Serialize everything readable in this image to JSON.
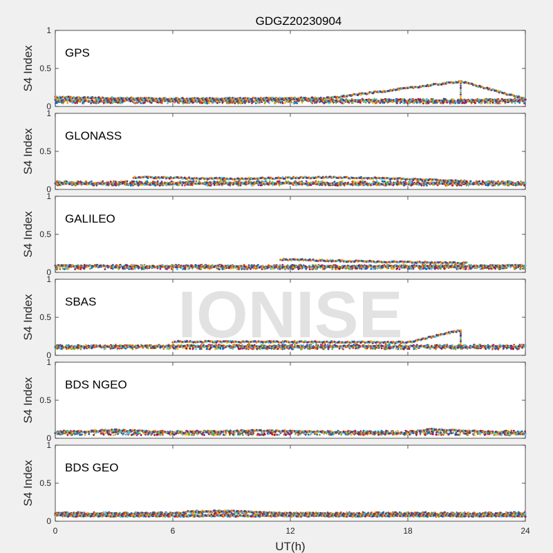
{
  "figure": {
    "title": "GDGZ20230904",
    "watermark": "IONISE",
    "background": "#f0f0f0"
  },
  "chart_data": [
    {
      "type": "scatter",
      "panel_label": "GPS",
      "ylabel": "S4 Index",
      "xlabel": "",
      "xlim": [
        0,
        24
      ],
      "ylim": [
        0,
        1
      ],
      "yticks": [
        0,
        0.5,
        1
      ],
      "ytick_labels": [
        "0",
        "0.5",
        "1"
      ],
      "base_level": 0.07,
      "series": [
        {
          "values": [
            [
              0,
              0.08
            ],
            [
              2,
              0.07
            ],
            [
              4,
              0.08
            ],
            [
              6,
              0.07
            ],
            [
              8,
              0.08
            ],
            [
              10,
              0.07
            ],
            [
              12,
              0.09
            ],
            [
              14,
              0.07
            ],
            [
              16,
              0.08
            ],
            [
              18,
              0.07
            ],
            [
              20,
              0.07
            ],
            [
              22,
              0.08
            ],
            [
              24,
              0.08
            ]
          ]
        },
        {
          "values": [
            [
              0,
              0.12
            ],
            [
              6,
              0.1
            ],
            [
              14,
              0.11
            ],
            [
              20.7,
              0.33
            ],
            [
              24,
              0.1
            ]
          ]
        }
      ]
    },
    {
      "type": "scatter",
      "panel_label": "GLONASS",
      "ylabel": "S4 Index",
      "xlabel": "",
      "xlim": [
        0,
        24
      ],
      "ylim": [
        0,
        1
      ],
      "yticks": [
        0,
        0.5,
        1
      ],
      "ytick_labels": [
        "0",
        "0.5",
        "1"
      ],
      "base_level": 0.08,
      "series": [
        {
          "values": [
            [
              0,
              0.08
            ],
            [
              4,
              0.07
            ],
            [
              8,
              0.08
            ],
            [
              12,
              0.08
            ],
            [
              16,
              0.07
            ],
            [
              20,
              0.08
            ],
            [
              24,
              0.08
            ]
          ]
        },
        {
          "values": [
            [
              4,
              0.16
            ],
            [
              6.5,
              0.15
            ],
            [
              9,
              0.14
            ],
            [
              14,
              0.16
            ],
            [
              16,
              0.15
            ],
            [
              21,
              0.11
            ]
          ]
        }
      ]
    },
    {
      "type": "scatter",
      "panel_label": "GALILEO",
      "ylabel": "S4 Index",
      "xlabel": "",
      "xlim": [
        0,
        24
      ],
      "ylim": [
        0,
        1
      ],
      "yticks": [
        0,
        0.5,
        1
      ],
      "ytick_labels": [
        "0",
        "0.5",
        "1"
      ],
      "base_level": 0.07,
      "series": [
        {
          "values": [
            [
              0,
              0.09
            ],
            [
              4,
              0.07
            ],
            [
              8,
              0.08
            ],
            [
              12,
              0.07
            ],
            [
              16,
              0.08
            ],
            [
              20,
              0.08
            ],
            [
              24,
              0.09
            ]
          ]
        },
        {
          "values": [
            [
              11.5,
              0.17
            ],
            [
              16.5,
              0.14
            ],
            [
              21,
              0.12
            ]
          ]
        }
      ]
    },
    {
      "type": "scatter",
      "panel_label": "SBAS",
      "ylabel": "S4 Index",
      "xlabel": "",
      "xlim": [
        0,
        24
      ],
      "ylim": [
        0,
        1
      ],
      "yticks": [
        0,
        0.5,
        1
      ],
      "ytick_labels": [
        "0",
        "0.5",
        "1"
      ],
      "base_level": 0.11,
      "series": [
        {
          "values": [
            [
              0,
              0.11
            ],
            [
              4,
              0.12
            ],
            [
              8,
              0.12
            ],
            [
              12,
              0.11
            ],
            [
              16,
              0.12
            ],
            [
              20,
              0.11
            ],
            [
              24,
              0.12
            ]
          ]
        },
        {
          "values": [
            [
              6,
              0.18
            ],
            [
              18,
              0.17
            ],
            [
              20.7,
              0.33
            ]
          ]
        }
      ]
    },
    {
      "type": "scatter",
      "panel_label": "BDS NGEO",
      "ylabel": "S4 Index",
      "xlabel": "",
      "xlim": [
        0,
        24
      ],
      "ylim": [
        0,
        1
      ],
      "yticks": [
        0,
        0.5,
        1
      ],
      "ytick_labels": [
        "0",
        "0.5",
        "1"
      ],
      "base_level": 0.07,
      "series": [
        {
          "values": [
            [
              0,
              0.07
            ],
            [
              3,
              0.11
            ],
            [
              6,
              0.07
            ],
            [
              10,
              0.1
            ],
            [
              14,
              0.08
            ],
            [
              18,
              0.07
            ],
            [
              19,
              0.12
            ],
            [
              24,
              0.06
            ]
          ]
        }
      ]
    },
    {
      "type": "scatter",
      "panel_label": "BDS GEO",
      "ylabel": "S4 Index",
      "xlabel": "UT(h)",
      "xlim": [
        0,
        24
      ],
      "ylim": [
        0,
        1
      ],
      "yticks": [
        0,
        0.5,
        1
      ],
      "ytick_labels": [
        "0",
        "0.5",
        "1"
      ],
      "xticks": [
        0,
        6,
        12,
        18,
        24
      ],
      "xtick_labels": [
        "0",
        "6",
        "12",
        "18",
        "24"
      ],
      "base_level": 0.09,
      "series": [
        {
          "values": [
            [
              0,
              0.1
            ],
            [
              6,
              0.1
            ],
            [
              7,
              0.13
            ],
            [
              9,
              0.13
            ],
            [
              12,
              0.1
            ],
            [
              18,
              0.09
            ],
            [
              24,
              0.1
            ]
          ]
        },
        {
          "values": [
            [
              0,
              0.07
            ],
            [
              12,
              0.07
            ],
            [
              24,
              0.07
            ]
          ]
        }
      ]
    }
  ],
  "colors": [
    "#0072BD",
    "#D95319",
    "#EDB120",
    "#7E2F8E",
    "#77AC30",
    "#4DBEEE",
    "#A2142F"
  ]
}
